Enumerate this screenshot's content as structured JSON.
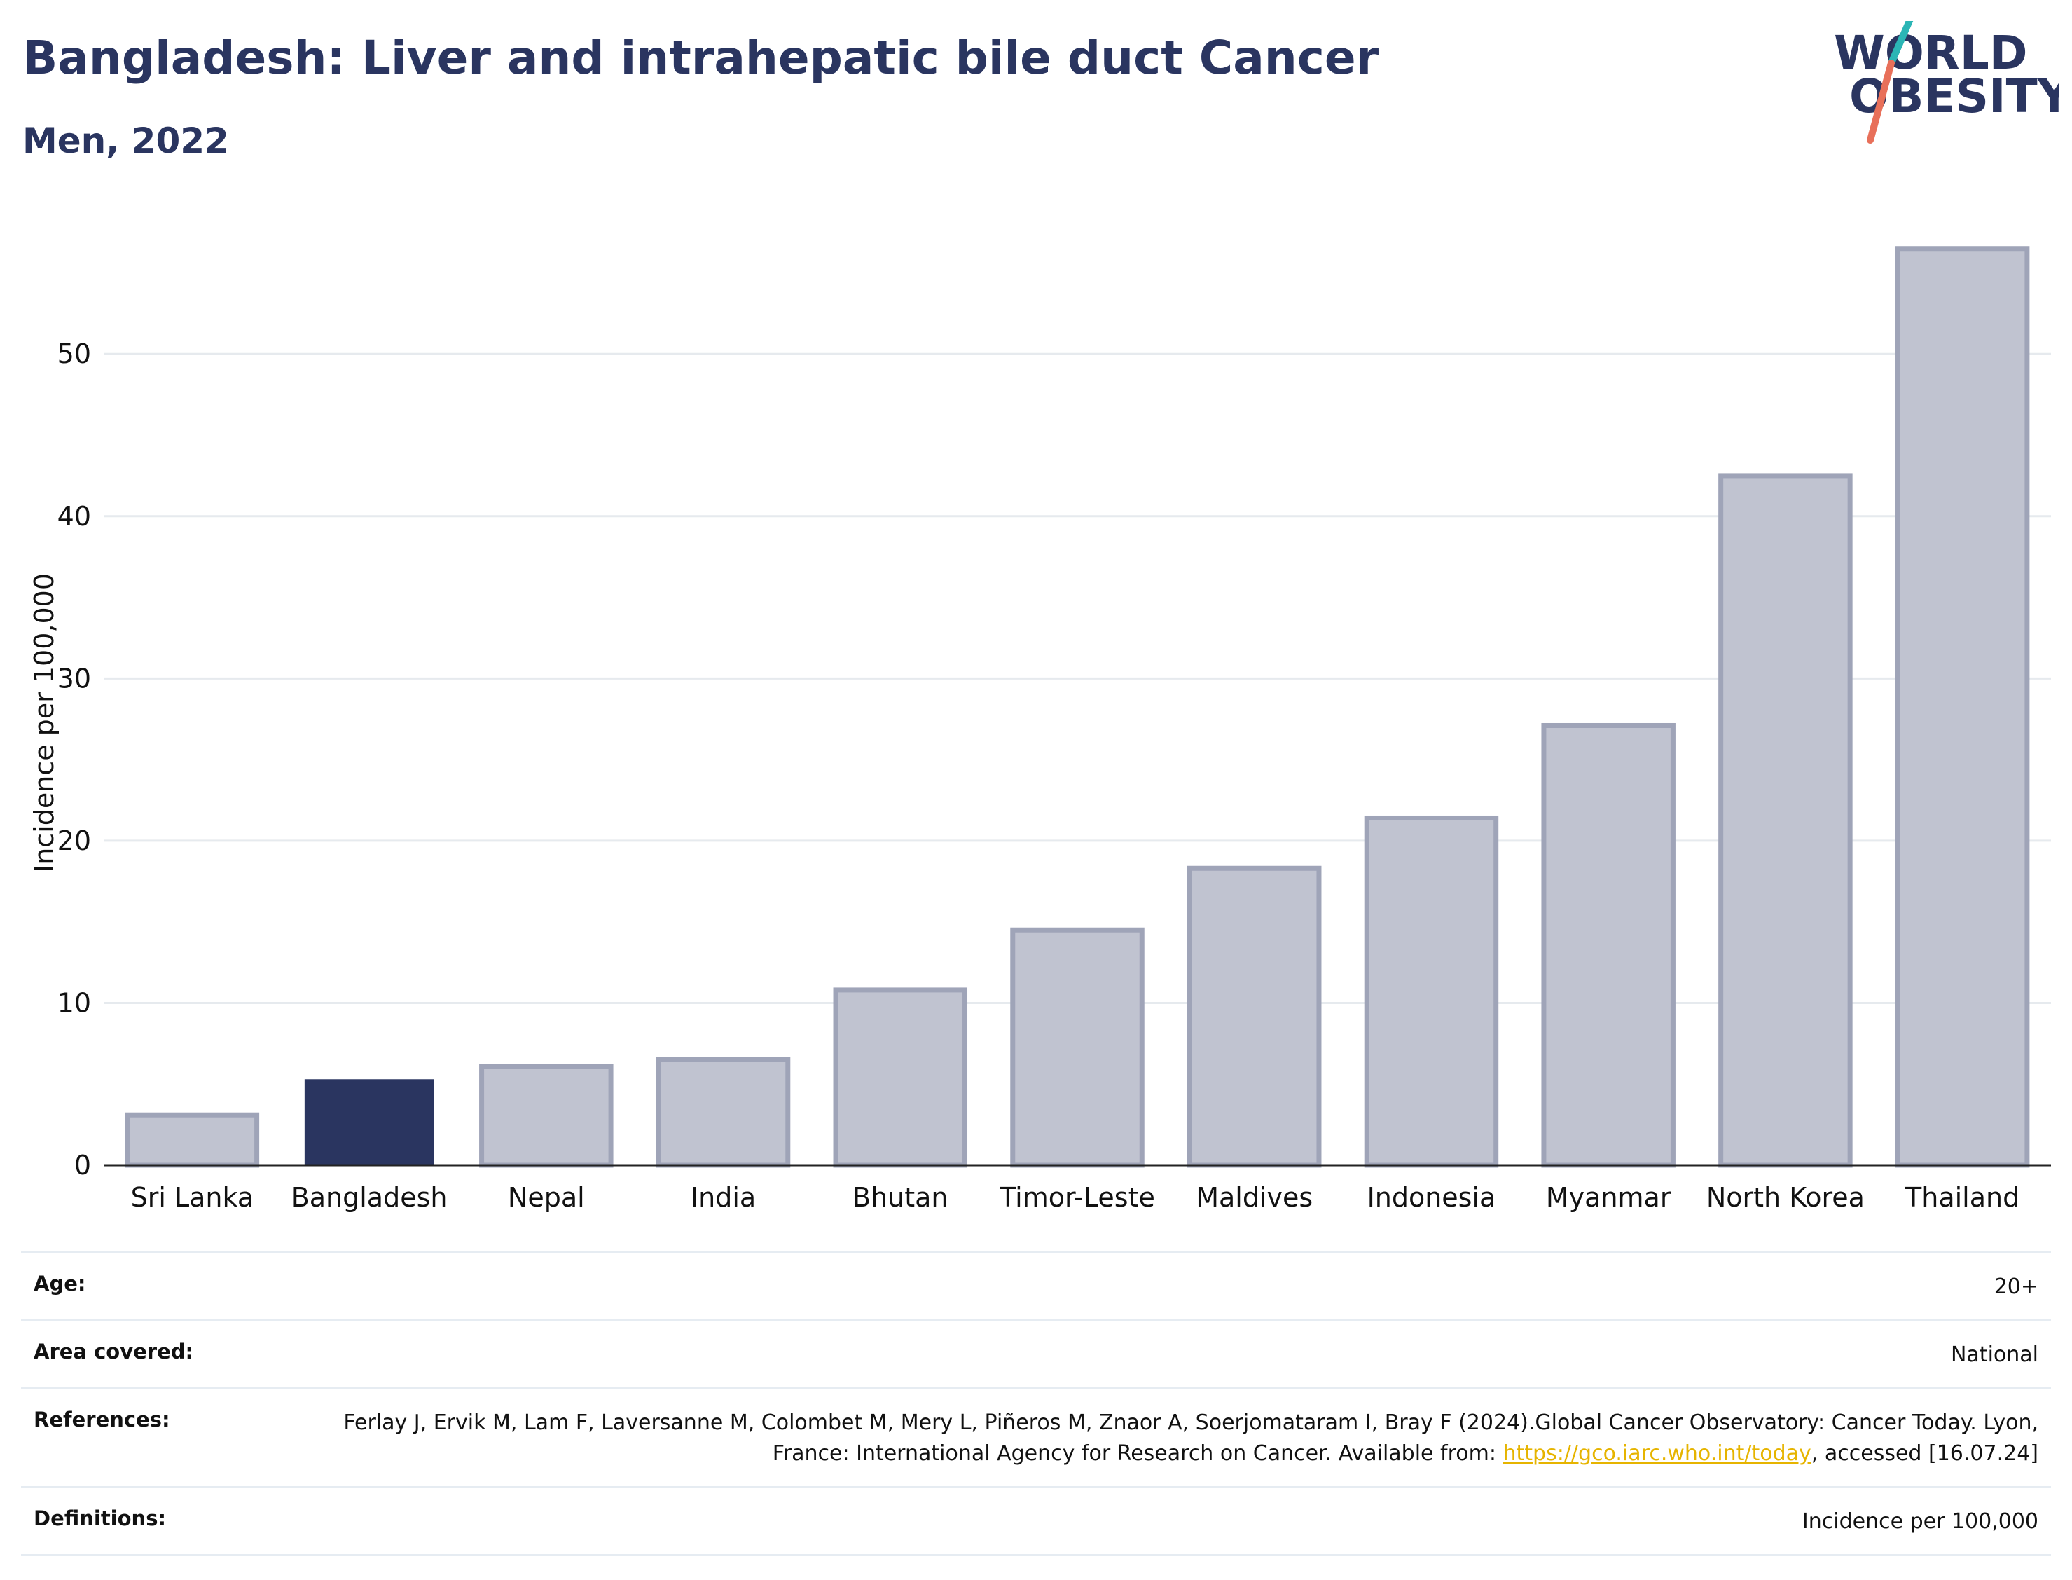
{
  "title": "Bangladesh: Liver and intrahepatic bile duct Cancer",
  "subtitle": "Men, 2022",
  "logo": {
    "line1": "WORLD",
    "line2": "OBESITY",
    "colors": {
      "text": "#2a3560",
      "slash_top": "#2bb5b5",
      "slash_bottom": "#e8705a"
    }
  },
  "chart_data": {
    "type": "bar",
    "categories": [
      "Sri Lanka",
      "Bangladesh",
      "Nepal",
      "India",
      "Bhutan",
      "Timor-Leste",
      "Maldives",
      "Indonesia",
      "Myanmar",
      "North Korea",
      "Thailand"
    ],
    "values": [
      3.1,
      5.3,
      6.1,
      6.5,
      10.8,
      14.5,
      18.3,
      21.4,
      27.1,
      42.5,
      56.5
    ],
    "highlight": "Bangladesh",
    "ylabel": "Incidence per 100,000",
    "xlabel": "",
    "ylim": [
      0,
      58
    ],
    "yticks": [
      0,
      10,
      20,
      30,
      40,
      50
    ],
    "grid": true,
    "colors": {
      "bar": "#c0c3d0",
      "bar_edge": "#9fa4b8",
      "highlight": "#2a3560",
      "grid": "#e6eaee",
      "axis": "#222222"
    }
  },
  "meta": {
    "age_label": "Age:",
    "age_value": "20+",
    "area_label": "Area covered:",
    "area_value": "National",
    "references_label": "References:",
    "references_text_1": "Ferlay J, Ervik M, Lam F, Laversanne M, Colombet M, Mery L, Piñeros M, Znaor A, Soerjomataram I, Bray F (2024).Global Cancer Observatory: Cancer Today. Lyon, France: International Agency for Research on Cancer. Available from: ",
    "references_link": "https://gco.iarc.who.int/today",
    "references_text_2": ", accessed [16.07.24]",
    "definitions_label": "Definitions:",
    "definitions_value": "Incidence per 100,000"
  }
}
